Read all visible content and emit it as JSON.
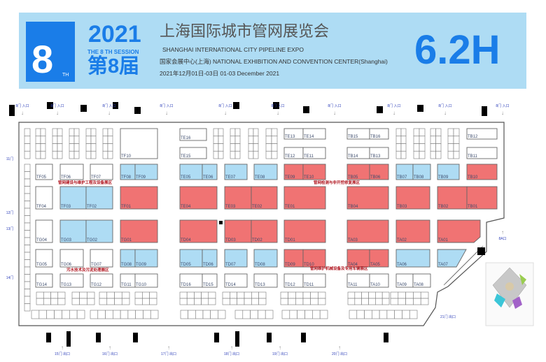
{
  "header": {
    "badge_number": "8",
    "badge_suffix": "TH",
    "year": "2021",
    "session_en": "THE 8 TH SESSION",
    "session_cn": "第8届",
    "title_cn": "上海国际城市管网展览会",
    "title_en": "SHANGHAI INTERNATIONAL CITY PIPELINE EXPO",
    "venue": "国家会展中心(上海)  NATIONAL EXHIBITION AND CONVENTION CENTER(Shanghai)",
    "dates": "2021年12月01日-03日    01-03 December 2021",
    "hall": "6.2H"
  },
  "colors": {
    "brand_blue": "#1a7de8",
    "header_bg": "#aedcf4",
    "red": "#f07373",
    "blue": "#aedcf4",
    "white": "#ffffff",
    "zone_text": "#b0141e"
  },
  "floorplan": {
    "booths": [
      {
        "id": "TF10",
        "zone": "white"
      },
      {
        "id": "TE16",
        "zone": "white"
      },
      {
        "id": "TE15",
        "zone": "white"
      },
      {
        "id": "TE13",
        "zone": "white"
      },
      {
        "id": "TE14",
        "zone": "white"
      },
      {
        "id": "TE12",
        "zone": "white"
      },
      {
        "id": "TE11",
        "zone": "white"
      },
      {
        "id": "TB15",
        "zone": "white"
      },
      {
        "id": "TB16",
        "zone": "white"
      },
      {
        "id": "TB14",
        "zone": "white"
      },
      {
        "id": "TB13",
        "zone": "white"
      },
      {
        "id": "TB12",
        "zone": "white"
      },
      {
        "id": "TB11",
        "zone": "white"
      },
      {
        "id": "TF05",
        "zone": "white"
      },
      {
        "id": "TF06",
        "zone": "white"
      },
      {
        "id": "TF07",
        "zone": "white"
      },
      {
        "id": "TF08",
        "zone": "blue"
      },
      {
        "id": "TF09",
        "zone": "blue"
      },
      {
        "id": "TE05",
        "zone": "blue"
      },
      {
        "id": "TE06",
        "zone": "blue"
      },
      {
        "id": "TE07",
        "zone": "blue"
      },
      {
        "id": "TE08",
        "zone": "blue"
      },
      {
        "id": "TE09",
        "zone": "red"
      },
      {
        "id": "TE10",
        "zone": "red"
      },
      {
        "id": "TB05",
        "zone": "red"
      },
      {
        "id": "TB06",
        "zone": "red"
      },
      {
        "id": "TB07",
        "zone": "blue"
      },
      {
        "id": "TB08",
        "zone": "blue"
      },
      {
        "id": "TB09",
        "zone": "blue"
      },
      {
        "id": "TB10",
        "zone": "red"
      },
      {
        "id": "TF04",
        "zone": "white"
      },
      {
        "id": "TF03",
        "zone": "blue"
      },
      {
        "id": "TF02",
        "zone": "blue"
      },
      {
        "id": "TF01",
        "zone": "red"
      },
      {
        "id": "TE04",
        "zone": "red"
      },
      {
        "id": "TE03",
        "zone": "red"
      },
      {
        "id": "TE02",
        "zone": "red"
      },
      {
        "id": "TE01",
        "zone": "red"
      },
      {
        "id": "TB04",
        "zone": "red"
      },
      {
        "id": "TB03",
        "zone": "red"
      },
      {
        "id": "TB02",
        "zone": "red"
      },
      {
        "id": "TB01",
        "zone": "red"
      },
      {
        "id": "TG04",
        "zone": "white"
      },
      {
        "id": "TG03",
        "zone": "blue"
      },
      {
        "id": "TG02",
        "zone": "blue"
      },
      {
        "id": "TG01",
        "zone": "red"
      },
      {
        "id": "TD04",
        "zone": "red"
      },
      {
        "id": "TD03",
        "zone": "red"
      },
      {
        "id": "TD02",
        "zone": "red"
      },
      {
        "id": "TD01",
        "zone": "red"
      },
      {
        "id": "TA03",
        "zone": "red"
      },
      {
        "id": "TA02",
        "zone": "red"
      },
      {
        "id": "TA01",
        "zone": "red"
      },
      {
        "id": "TG05",
        "zone": "white"
      },
      {
        "id": "TG06",
        "zone": "white"
      },
      {
        "id": "TG07",
        "zone": "white"
      },
      {
        "id": "TG08",
        "zone": "blue"
      },
      {
        "id": "TG09",
        "zone": "blue"
      },
      {
        "id": "TD05",
        "zone": "blue"
      },
      {
        "id": "TD06",
        "zone": "blue"
      },
      {
        "id": "TD07",
        "zone": "blue"
      },
      {
        "id": "TD08",
        "zone": "blue"
      },
      {
        "id": "TD09",
        "zone": "red"
      },
      {
        "id": "TD10",
        "zone": "red"
      },
      {
        "id": "TA04",
        "zone": "red"
      },
      {
        "id": "TA05",
        "zone": "red"
      },
      {
        "id": "TA06",
        "zone": "blue"
      },
      {
        "id": "TA07",
        "zone": "blue"
      },
      {
        "id": "TG14",
        "zone": "white"
      },
      {
        "id": "TG13",
        "zone": "white"
      },
      {
        "id": "TG12",
        "zone": "white"
      },
      {
        "id": "TG11",
        "zone": "white"
      },
      {
        "id": "TG10",
        "zone": "white"
      },
      {
        "id": "TD16",
        "zone": "white"
      },
      {
        "id": "TD15",
        "zone": "white"
      },
      {
        "id": "TD14",
        "zone": "white"
      },
      {
        "id": "TD13",
        "zone": "white"
      },
      {
        "id": "TD12",
        "zone": "white"
      },
      {
        "id": "TD11",
        "zone": "white"
      },
      {
        "id": "TA11",
        "zone": "white"
      },
      {
        "id": "TA10",
        "zone": "white"
      },
      {
        "id": "TA09",
        "zone": "white"
      },
      {
        "id": "TA08",
        "zone": "white"
      }
    ],
    "zone_labels": [
      "管网建设与维护工程及设备展区",
      "管网检测与非开挖修复展区",
      "污水技术及污泥处理展区",
      "管网维护机械设备及专用车辆展区"
    ],
    "doors_top": [
      "8门 入口",
      "8门 入口",
      "8门 入口",
      "8门 入口",
      "8门 入口",
      "8门 入口",
      "8门 入口",
      "8门 入口",
      "8门 入口",
      "8门 入口"
    ],
    "doors_left": [
      "11门",
      "12门",
      "13门",
      "14门"
    ],
    "doors_bottom": [
      "15门 出口",
      "16门 出口",
      "17门 出口",
      "18门 出口",
      "19门 出口",
      "20门 出口"
    ],
    "door_right_bottom": "21门 出口",
    "door_right": "8A口"
  }
}
